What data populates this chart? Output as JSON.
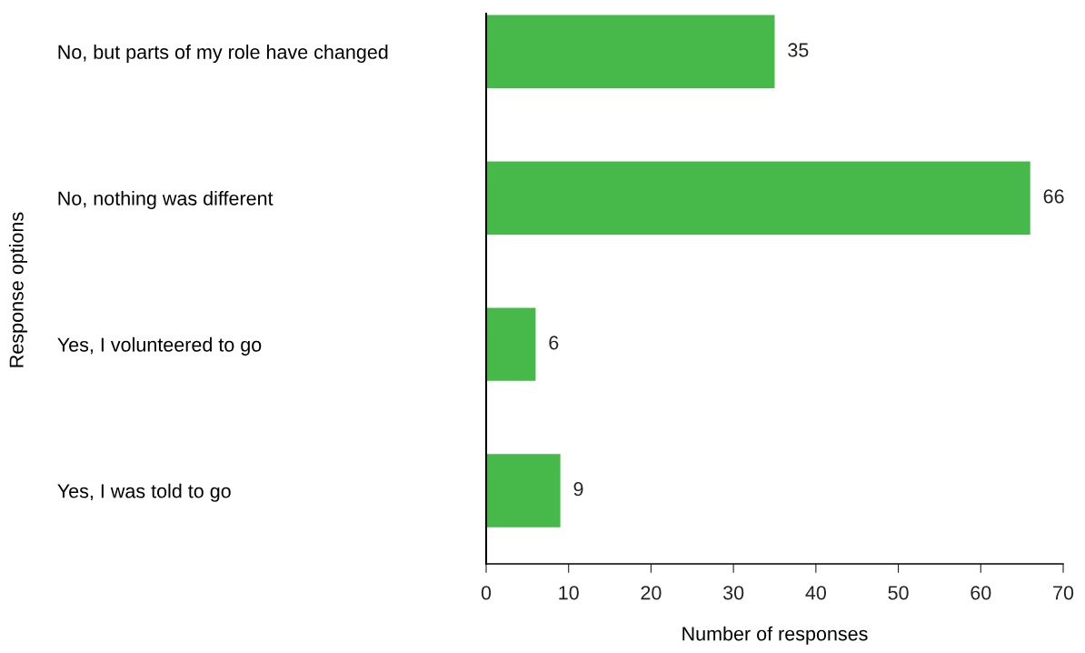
{
  "chart_data": {
    "type": "bar",
    "orientation": "horizontal",
    "xlabel": "Number of responses",
    "ylabel": "Response options",
    "categories": [
      "No, but parts of my role have changed",
      "No, nothing was different",
      "Yes, I volunteered to go",
      "Yes, I was told to go"
    ],
    "values": [
      35,
      66,
      6,
      9
    ],
    "color": "#46b94a",
    "data_labels": true,
    "xlim": [
      0,
      70
    ],
    "xticks": [
      0,
      10,
      20,
      30,
      40,
      50,
      60,
      70
    ],
    "grid": false,
    "legend": false
  }
}
